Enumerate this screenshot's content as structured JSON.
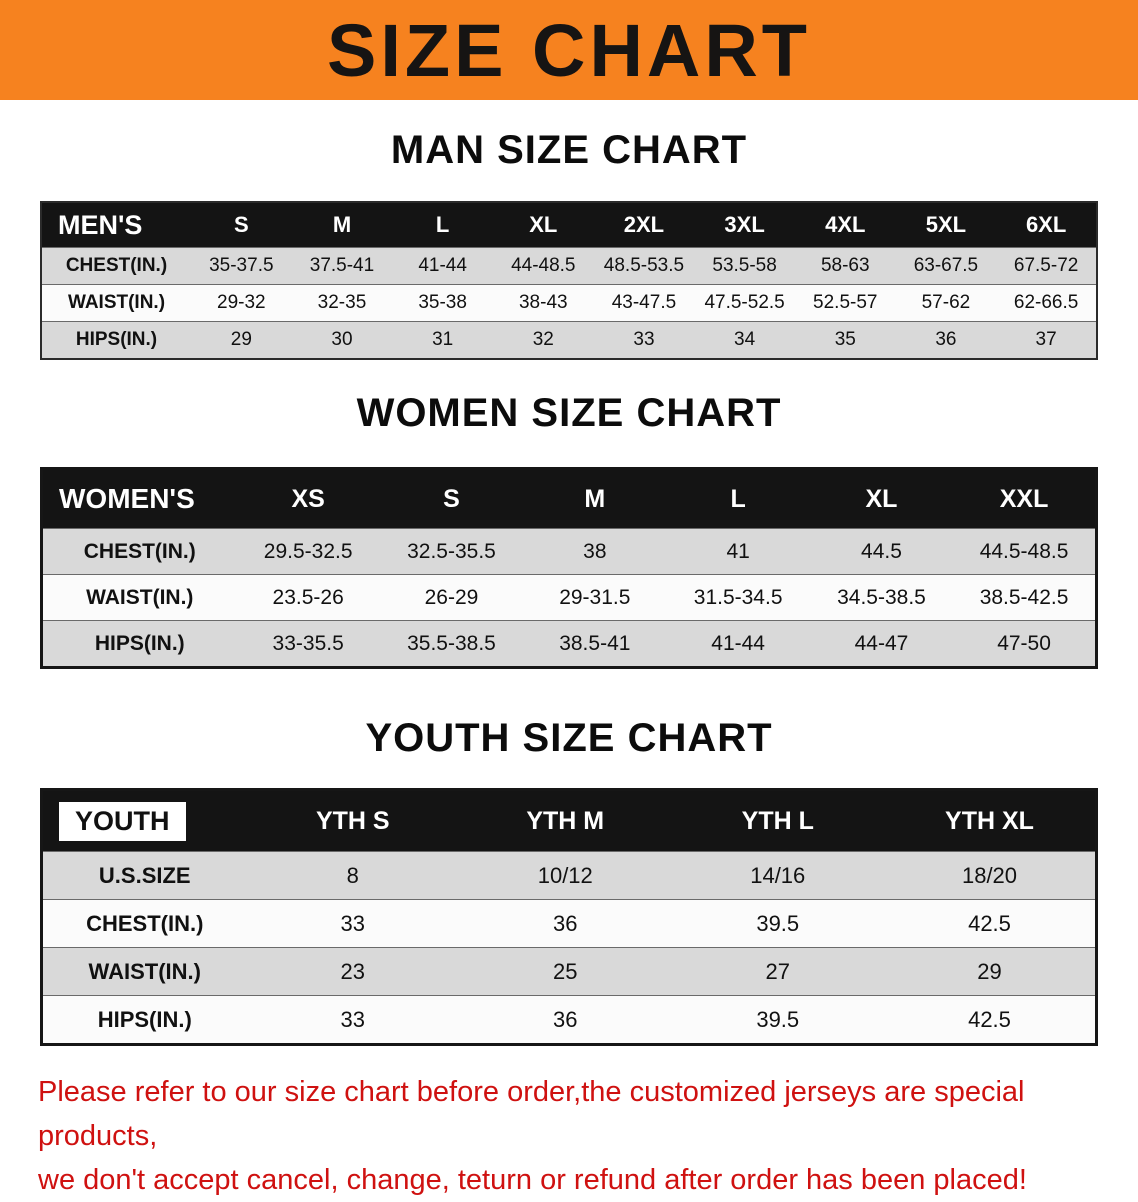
{
  "banner": {
    "title": "SIZE CHART"
  },
  "men": {
    "heading": "MAN SIZE CHART",
    "label": "MEN'S",
    "sizes": [
      "S",
      "M",
      "L",
      "XL",
      "2XL",
      "3XL",
      "4XL",
      "5XL",
      "6XL"
    ],
    "rows": [
      {
        "label": "CHEST(IN.)",
        "values": [
          "35-37.5",
          "37.5-41",
          "41-44",
          "44-48.5",
          "48.5-53.5",
          "53.5-58",
          "58-63",
          "63-67.5",
          "67.5-72"
        ]
      },
      {
        "label": "WAIST(IN.)",
        "values": [
          "29-32",
          "32-35",
          "35-38",
          "38-43",
          "43-47.5",
          "47.5-52.5",
          "52.5-57",
          "57-62",
          "62-66.5"
        ]
      },
      {
        "label": "HIPS(IN.)",
        "values": [
          "29",
          "30",
          "31",
          "32",
          "33",
          "34",
          "35",
          "36",
          "37"
        ]
      }
    ]
  },
  "women": {
    "heading": "WOMEN SIZE CHART",
    "label": "WOMEN'S",
    "sizes": [
      "XS",
      "S",
      "M",
      "L",
      "XL",
      "XXL"
    ],
    "rows": [
      {
        "label": "CHEST(IN.)",
        "values": [
          "29.5-32.5",
          "32.5-35.5",
          "38",
          "41",
          "44.5",
          "44.5-48.5"
        ]
      },
      {
        "label": "WAIST(IN.)",
        "values": [
          "23.5-26",
          "26-29",
          "29-31.5",
          "31.5-34.5",
          "34.5-38.5",
          "38.5-42.5"
        ]
      },
      {
        "label": "HIPS(IN.)",
        "values": [
          "33-35.5",
          "35.5-38.5",
          "38.5-41",
          "41-44",
          "44-47",
          "47-50"
        ]
      }
    ]
  },
  "youth": {
    "heading": "YOUTH SIZE CHART",
    "label": "YOUTH",
    "sizes": [
      "YTH S",
      "YTH M",
      "YTH L",
      "YTH XL"
    ],
    "rows": [
      {
        "label": "U.S.SIZE",
        "values": [
          "8",
          "10/12",
          "14/16",
          "18/20"
        ]
      },
      {
        "label": "CHEST(IN.)",
        "values": [
          "33",
          "36",
          "39.5",
          "42.5"
        ]
      },
      {
        "label": "WAIST(IN.)",
        "values": [
          "23",
          "25",
          "27",
          "29"
        ]
      },
      {
        "label": "HIPS(IN.)",
        "values": [
          "33",
          "36",
          "39.5",
          "42.5"
        ]
      }
    ]
  },
  "disclaimer": {
    "line1": "Please refer to our size chart before order,the customized jerseys are special products,",
    "line2": "we don't accept cancel, change, teturn or refund after order has been placed!"
  },
  "colors": {
    "banner_bg": "#f6821f",
    "banner_text": "#161413",
    "table_header_bg": "#141414",
    "table_header_text": "#ffffff",
    "row_shaded_bg": "#d9d9d9",
    "row_light_bg": "#fbfbfb",
    "disclaimer_text": "#cf1110"
  }
}
